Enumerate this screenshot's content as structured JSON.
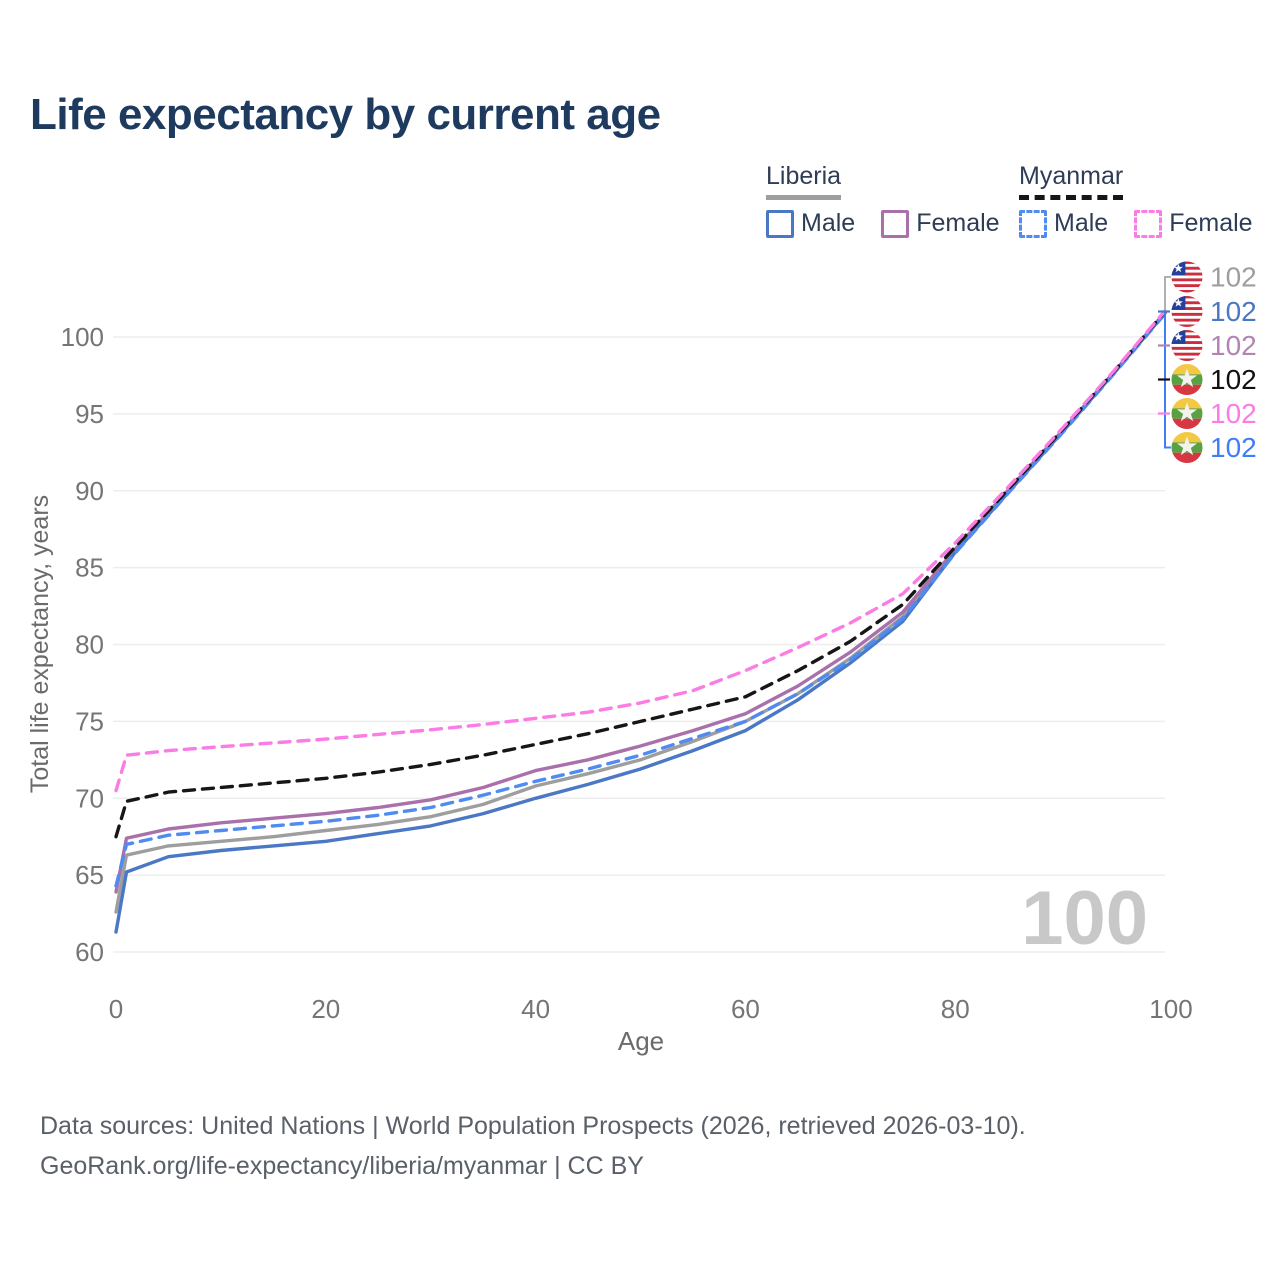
{
  "title": "Life expectancy by current age",
  "watermark": "100",
  "colors": {
    "title": "#1e3a5f",
    "gridline": "#ededed",
    "tick_label": "#757575",
    "axis_title": "#6b6b6b",
    "watermark": "#c8c8c8",
    "liberia_both": "#9e9e9e",
    "liberia_male": "#4a78c5",
    "liberia_female": "#a970ab",
    "myanmar_both": "#161616",
    "myanmar_male": "#4f8bf0",
    "myanmar_female": "#fb7ce4"
  },
  "legend": {
    "groups": [
      {
        "name": "Liberia",
        "line_style": "solid",
        "line_color": "#9e9e9e",
        "items": [
          {
            "label": "Male",
            "color": "#4a78c5",
            "dashed": false
          },
          {
            "label": "Female",
            "color": "#a970ab",
            "dashed": false
          }
        ]
      },
      {
        "name": "Myanmar",
        "line_style": "dashed",
        "line_color": "#161616",
        "items": [
          {
            "label": "Male",
            "color": "#4f8bf0",
            "dashed": true
          },
          {
            "label": "Female",
            "color": "#fb7ce4",
            "dashed": true
          }
        ]
      }
    ]
  },
  "end_labels": [
    {
      "country": "liberia",
      "value": "102",
      "color": "#9e9e9e",
      "series": "Liberia both sexes"
    },
    {
      "country": "liberia",
      "value": "102",
      "color": "#4a78c5",
      "series": "Liberia male"
    },
    {
      "country": "liberia",
      "value": "102",
      "color": "#b384b3",
      "series": "Liberia female"
    },
    {
      "country": "myanmar",
      "value": "102",
      "color": "#111111",
      "series": "Myanmar both sexes"
    },
    {
      "country": "myanmar",
      "value": "102",
      "color": "#fb7ce4",
      "series": "Myanmar female"
    },
    {
      "country": "myanmar",
      "value": "102",
      "color": "#3f7ef5",
      "series": "Myanmar male"
    }
  ],
  "footer": {
    "line1": "Data sources: United Nations | World Population Prospects (2026, retrieved 2026-03-10).",
    "line2": "GeoRank.org/life-expectancy/liberia/myanmar | CC BY"
  },
  "chart_data": {
    "type": "line",
    "title": "Life expectancy by current age",
    "xlabel": "Age",
    "ylabel": "Total life expectancy, years",
    "xlim": [
      0,
      100
    ],
    "ylim": [
      60,
      100
    ],
    "x_ticks": [
      0,
      20,
      40,
      60,
      80,
      100
    ],
    "y_ticks": [
      60,
      65,
      70,
      75,
      80,
      85,
      90,
      95,
      100
    ],
    "grid": "horizontal",
    "x": [
      0,
      1,
      5,
      10,
      15,
      20,
      25,
      30,
      35,
      40,
      45,
      50,
      55,
      60,
      65,
      70,
      75,
      80,
      85,
      90,
      95,
      100
    ],
    "series": [
      {
        "name": "Liberia both sexes",
        "color": "#9e9e9e",
        "dashed": false,
        "values": [
          62.6,
          66.3,
          66.9,
          67.2,
          67.5,
          67.9,
          68.3,
          68.8,
          69.6,
          70.8,
          71.6,
          72.5,
          73.7,
          75.0,
          76.8,
          79.1,
          81.8,
          86.1,
          89.9,
          93.7,
          97.6,
          101.6
        ]
      },
      {
        "name": "Liberia female",
        "color": "#a970ab",
        "dashed": false,
        "values": [
          63.9,
          67.4,
          68.0,
          68.4,
          68.7,
          69.0,
          69.4,
          69.9,
          70.7,
          71.8,
          72.5,
          73.4,
          74.4,
          75.5,
          77.3,
          79.5,
          82.1,
          86.2,
          90.0,
          93.75,
          97.6,
          101.6
        ]
      },
      {
        "name": "Liberia male",
        "color": "#4a78c5",
        "dashed": false,
        "values": [
          61.3,
          65.2,
          66.2,
          66.6,
          66.9,
          67.2,
          67.7,
          68.2,
          69.0,
          70.0,
          70.9,
          71.9,
          73.1,
          74.4,
          76.4,
          78.8,
          81.5,
          86.0,
          89.85,
          93.65,
          97.55,
          101.55
        ]
      },
      {
        "name": "Myanmar male",
        "color": "#4f8bf0",
        "dashed": true,
        "values": [
          64.3,
          67.0,
          67.6,
          67.9,
          68.2,
          68.5,
          68.9,
          69.4,
          70.2,
          71.1,
          71.9,
          72.8,
          73.9,
          75.0,
          76.8,
          79.0,
          81.7,
          85.95,
          89.8,
          93.6,
          97.5,
          101.5
        ]
      },
      {
        "name": "Myanmar both sexes",
        "color": "#161616",
        "dashed": true,
        "values": [
          67.5,
          69.8,
          70.4,
          70.7,
          71.0,
          71.3,
          71.7,
          72.2,
          72.8,
          73.5,
          74.2,
          75.0,
          75.8,
          76.6,
          78.3,
          80.2,
          82.6,
          86.35,
          90.05,
          93.8,
          97.65,
          101.65
        ]
      },
      {
        "name": "Myanmar female",
        "color": "#fb7ce4",
        "dashed": true,
        "values": [
          70.5,
          72.8,
          73.1,
          73.35,
          73.6,
          73.85,
          74.15,
          74.45,
          74.8,
          75.2,
          75.6,
          76.2,
          77.0,
          78.3,
          79.8,
          81.4,
          83.3,
          86.6,
          90.2,
          93.9,
          97.7,
          101.7
        ]
      }
    ]
  }
}
